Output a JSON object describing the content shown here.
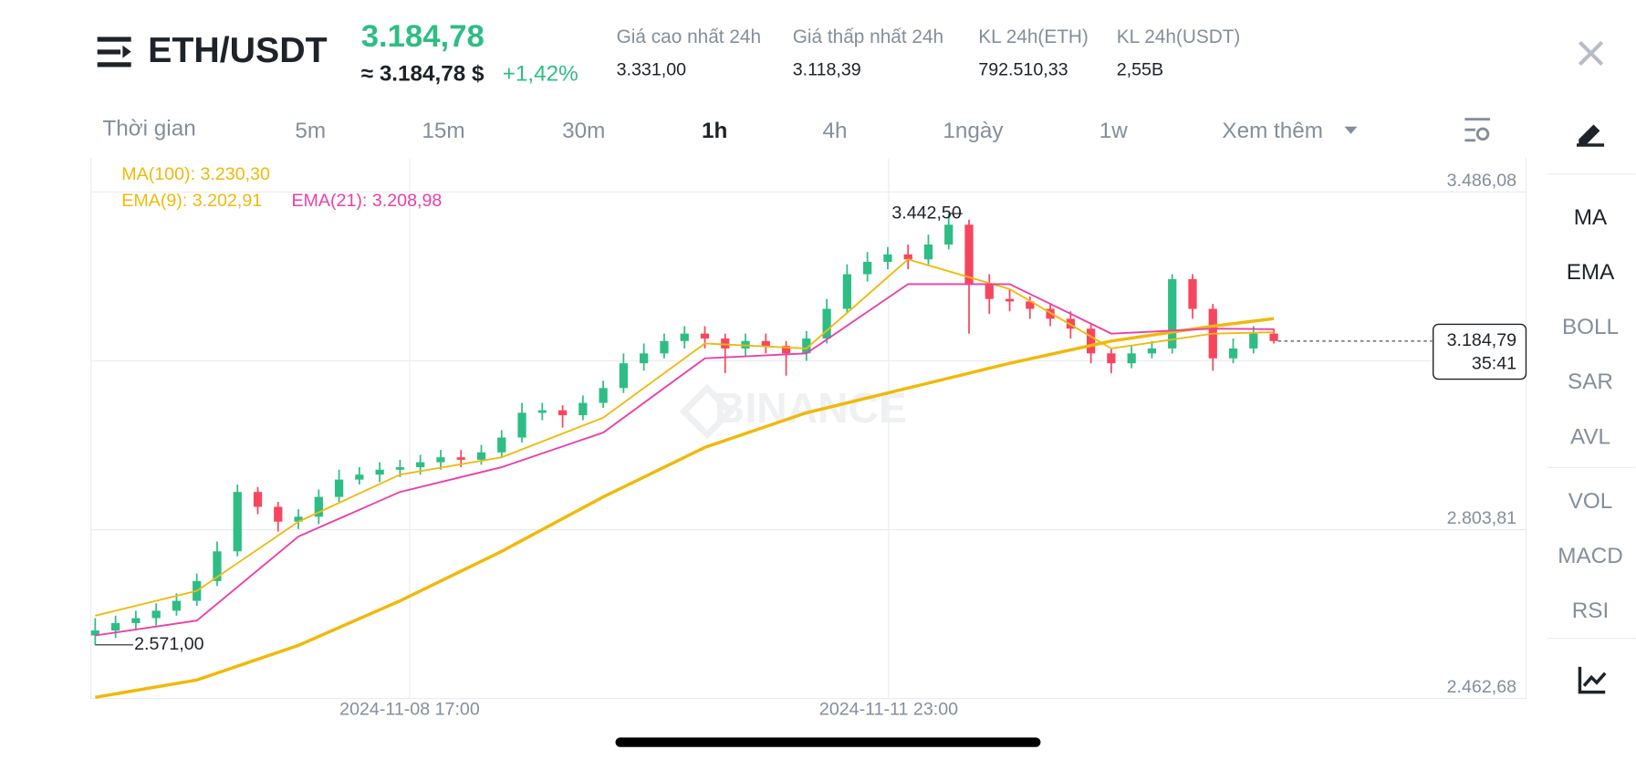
{
  "header": {
    "pair": "ETH/USDT",
    "price": "3.184,78",
    "price_fiat": "≈ 3.184,78 $",
    "change": "+1,42%",
    "stats": [
      {
        "label": "Giá cao nhất 24h",
        "value": "3.331,00"
      },
      {
        "label": "Giá thấp nhất 24h",
        "value": "3.118,39"
      },
      {
        "label": "KL 24h(ETH)",
        "value": "792.510,33"
      },
      {
        "label": "KL 24h(USDT)",
        "value": "2,55B"
      }
    ]
  },
  "timeframes": {
    "label": "Thời gian",
    "items": [
      "5m",
      "15m",
      "30m",
      "1h",
      "4h",
      "1ngày",
      "1w"
    ],
    "active": "1h",
    "more": "Xem thêm"
  },
  "sidebar": {
    "indicators": [
      "MA",
      "EMA",
      "BOLL",
      "SAR",
      "AVL"
    ],
    "sub_indicators": [
      "VOL",
      "MACD",
      "RSI"
    ]
  },
  "watermark": "BINANCE",
  "chart_data": {
    "type": "candlestick",
    "ylim": [
      2462.68,
      3554.31
    ],
    "yticks": [
      {
        "value": 2462.68,
        "label": "2.462,68"
      },
      {
        "value": 2803.81,
        "label": "2.803,81"
      },
      {
        "value": 3486.08,
        "label": "3.486,08"
      }
    ],
    "x_labels": [
      "2024-11-08 17:00",
      "2024-11-11 23:00"
    ],
    "up_color": "#2ebd85",
    "down_color": "#f6465d",
    "open": [
      2590,
      2600,
      2615,
      2625,
      2640,
      2660,
      2700,
      2760,
      2880,
      2850,
      2820,
      2830,
      2870,
      2905,
      2915,
      2925,
      2930,
      2940,
      2950,
      2945,
      2960,
      2990,
      3040,
      3045,
      3035,
      3060,
      3090,
      3140,
      3160,
      3185,
      3200,
      3190,
      3170,
      3185,
      3175,
      3160,
      3190,
      3250,
      3320,
      3345,
      3360,
      3350,
      3380,
      3420,
      3300,
      3270,
      3265,
      3250,
      3230,
      3210,
      3160,
      3140,
      3160,
      3170,
      3310,
      3250,
      3150,
      3170,
      3200
    ],
    "high": [
      2625,
      2630,
      2640,
      2655,
      2675,
      2715,
      2780,
      2895,
      2890,
      2860,
      2845,
      2885,
      2925,
      2930,
      2940,
      2945,
      2955,
      2965,
      2965,
      2975,
      3005,
      3060,
      3060,
      3055,
      3075,
      3105,
      3160,
      3180,
      3200,
      3215,
      3215,
      3200,
      3200,
      3200,
      3185,
      3205,
      3270,
      3340,
      3365,
      3375,
      3380,
      3400,
      3442.5,
      3430,
      3320,
      3290,
      3275,
      3260,
      3245,
      3220,
      3170,
      3175,
      3185,
      3320,
      3320,
      3260,
      3190,
      3215,
      3210
    ],
    "low": [
      2571,
      2585,
      2600,
      2610,
      2630,
      2650,
      2690,
      2750,
      2835,
      2800,
      2805,
      2815,
      2860,
      2895,
      2900,
      2910,
      2915,
      2925,
      2930,
      2935,
      2950,
      2980,
      3025,
      3010,
      3025,
      3050,
      3080,
      3125,
      3150,
      3170,
      3170,
      3120,
      3155,
      3160,
      3115,
      3145,
      3180,
      3240,
      3305,
      3330,
      3330,
      3340,
      3370,
      3200,
      3240,
      3245,
      3230,
      3215,
      3190,
      3140,
      3120,
      3130,
      3150,
      3160,
      3230,
      3125,
      3140,
      3160,
      3180
    ],
    "close": [
      2600,
      2615,
      2625,
      2640,
      2660,
      2700,
      2760,
      2880,
      2850,
      2820,
      2830,
      2870,
      2905,
      2915,
      2925,
      2930,
      2940,
      2950,
      2945,
      2960,
      2990,
      3040,
      3045,
      3035,
      3060,
      3090,
      3140,
      3160,
      3185,
      3200,
      3190,
      3170,
      3185,
      3175,
      3160,
      3190,
      3250,
      3320,
      3345,
      3360,
      3350,
      3380,
      3420,
      3300,
      3270,
      3265,
      3250,
      3230,
      3210,
      3160,
      3140,
      3160,
      3170,
      3310,
      3250,
      3150,
      3170,
      3200,
      3185
    ],
    "lines": [
      {
        "legend": "MA(100): 3.230,30",
        "color": "#f0b90b",
        "width": 3,
        "x": [
          0,
          5,
          10,
          15,
          20,
          25,
          30,
          35,
          40,
          45,
          50,
          55,
          58
        ],
        "values": [
          2465,
          2500,
          2570,
          2660,
          2760,
          2870,
          2970,
          3040,
          3090,
          3140,
          3185,
          3215,
          3230.3
        ]
      },
      {
        "legend": "EMA(9): 3.202,91",
        "color": "#f0b90b",
        "width": 1.6,
        "x": [
          0,
          5,
          10,
          15,
          20,
          25,
          30,
          35,
          40,
          45,
          50,
          55,
          58
        ],
        "values": [
          2630,
          2680,
          2820,
          2915,
          2950,
          3030,
          3180,
          3170,
          3350,
          3290,
          3170,
          3200,
          3202.91
        ]
      },
      {
        "legend": "EMA(21): 3.208,98",
        "color": "#e93fa8",
        "width": 1.6,
        "x": [
          0,
          5,
          10,
          15,
          20,
          25,
          30,
          35,
          40,
          45,
          50,
          55,
          58
        ],
        "values": [
          2590,
          2620,
          2790,
          2880,
          2930,
          3000,
          3150,
          3160,
          3300,
          3300,
          3200,
          3210,
          3208.98
        ]
      }
    ],
    "annotations": [
      {
        "value": 3442.5,
        "label": "3.442,50"
      },
      {
        "value": 2571,
        "label": "2.571,00"
      }
    ],
    "last_price": {
      "value": 3184.79,
      "label": "3.184,79",
      "countdown": "35:41"
    }
  }
}
